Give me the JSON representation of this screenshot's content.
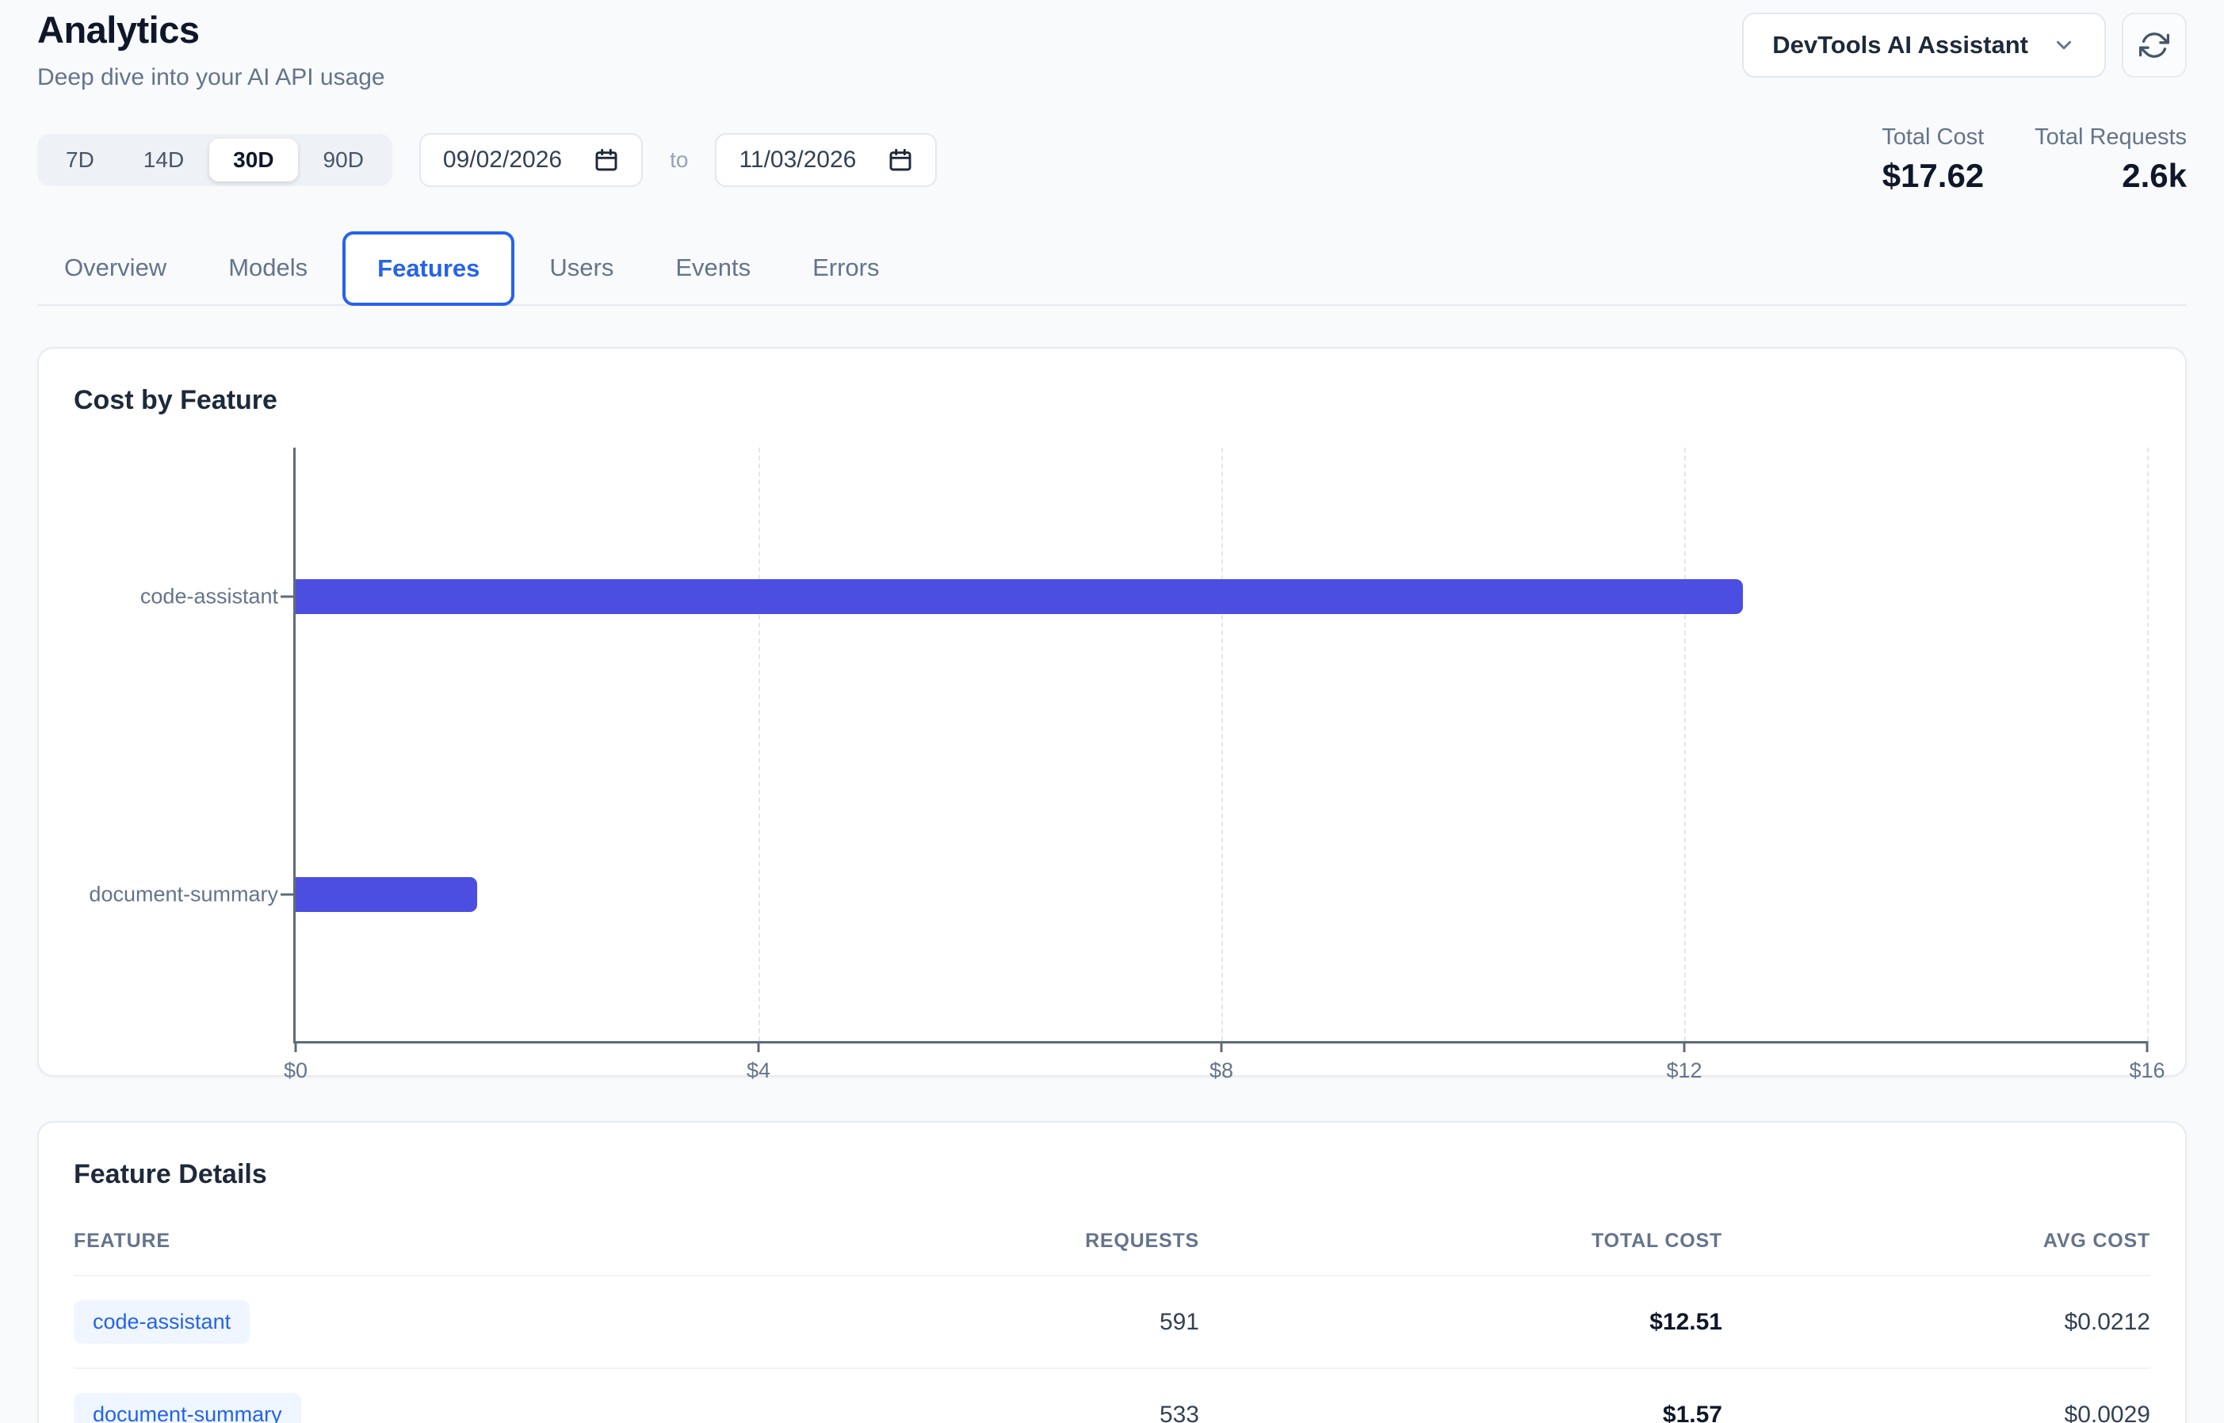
{
  "header": {
    "title": "Analytics",
    "subtitle": "Deep dive into your AI API usage"
  },
  "toolbar": {
    "project_selector_label": "DevTools AI Assistant"
  },
  "filters": {
    "ranges": [
      "7D",
      "14D",
      "30D",
      "90D"
    ],
    "active_range": "30D",
    "date_from": "09/02/2026",
    "to_label": "to",
    "date_to": "11/03/2026"
  },
  "totals": {
    "cost_label": "Total Cost",
    "cost_value": "$17.62",
    "requests_label": "Total Requests",
    "requests_value": "2.6k"
  },
  "tabs": {
    "items": [
      "Overview",
      "Models",
      "Features",
      "Users",
      "Events",
      "Errors"
    ],
    "active": "Features"
  },
  "chart_card": {
    "title": "Cost by Feature"
  },
  "chart_data": {
    "type": "bar",
    "orientation": "horizontal",
    "title": "Cost by Feature",
    "categories": [
      "code-assistant",
      "document-summary"
    ],
    "values": [
      12.51,
      1.57
    ],
    "value_unit": "USD",
    "xlim": [
      0,
      16
    ],
    "x_ticks": [
      {
        "value": 0,
        "label": "$0"
      },
      {
        "value": 4,
        "label": "$4"
      },
      {
        "value": 8,
        "label": "$8"
      },
      {
        "value": 12,
        "label": "$12"
      },
      {
        "value": 16,
        "label": "$16"
      }
    ],
    "bar_color": "#4b4ee0",
    "grid": "dashed-vertical",
    "legend": "none"
  },
  "feature_details": {
    "title": "Feature Details",
    "columns": [
      "FEATURE",
      "REQUESTS",
      "TOTAL COST",
      "AVG COST"
    ],
    "rows": [
      {
        "feature": "code-assistant",
        "requests": "591",
        "total_cost": "$12.51",
        "avg_cost": "$0.0212"
      },
      {
        "feature": "document-summary",
        "requests": "533",
        "total_cost": "$1.57",
        "avg_cost": "$0.0029"
      }
    ]
  }
}
